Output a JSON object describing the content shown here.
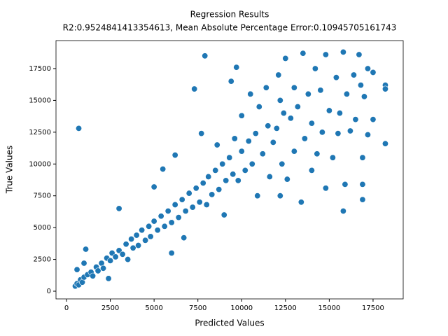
{
  "chart_data": {
    "type": "scatter",
    "title": "Regression Results",
    "subtitle": "R2:0.9524841413354613, Mean Absolute Percentage Error:0.10945705161743",
    "x_label": "Predicted Values",
    "y_label": "True Values",
    "color": "#1f77b4",
    "xlim": [
      -600,
      19220
    ],
    "ylim": [
      -605,
      19700
    ],
    "xticks": [
      0,
      2500,
      5000,
      7500,
      10000,
      12500,
      15000,
      17500
    ],
    "yticks": [
      0,
      2500,
      5000,
      7500,
      10000,
      12500,
      15000,
      17500
    ],
    "x": [
      500,
      600,
      700,
      800,
      900,
      1000,
      1100,
      1200,
      1400,
      1500,
      1700,
      1800,
      2000,
      2100,
      2300,
      2400,
      2500,
      2600,
      2800,
      3000,
      3000,
      3200,
      3400,
      3500,
      3700,
      3800,
      4000,
      4100,
      4300,
      4500,
      4700,
      4800,
      5000,
      5000,
      5200,
      5400,
      5500,
      5600,
      5800,
      6000,
      6000,
      6200,
      6200,
      6400,
      6600,
      6700,
      6800,
      7000,
      7200,
      7300,
      7400,
      7600,
      7700,
      7800,
      7900,
      8000,
      8100,
      8300,
      8500,
      8600,
      8700,
      8900,
      9000,
      9100,
      9300,
      9400,
      9500,
      9600,
      9700,
      9800,
      10000,
      10000,
      10200,
      10400,
      10500,
      10600,
      10800,
      10900,
      11000,
      11200,
      11400,
      11500,
      11600,
      11800,
      12000,
      12100,
      12200,
      12200,
      12300,
      12400,
      12500,
      12600,
      12800,
      13000,
      13000,
      13200,
      13400,
      13500,
      13600,
      13800,
      14000,
      14000,
      14200,
      14300,
      14500,
      14600,
      14800,
      14800,
      15000,
      15200,
      15400,
      15500,
      15600,
      15800,
      15800,
      15900,
      16000,
      16200,
      16400,
      16500,
      16700,
      16800,
      16900,
      16900,
      16900,
      17000,
      17200,
      17200,
      17500,
      17500,
      18200,
      18200,
      18200,
      700,
      600,
      1000
    ],
    "y": [
      400,
      600,
      500,
      900,
      700,
      1100,
      3300,
      1300,
      1500,
      1200,
      1900,
      1600,
      2200,
      1800,
      2600,
      1000,
      2400,
      3000,
      2700,
      3200,
      6500,
      2900,
      3700,
      2500,
      4100,
      3400,
      4400,
      3600,
      4800,
      4000,
      5100,
      4300,
      5500,
      8200,
      4800,
      5900,
      9600,
      5100,
      6300,
      5400,
      3000,
      6800,
      10700,
      5800,
      7200,
      4200,
      6300,
      7700,
      6600,
      15900,
      8100,
      7000,
      12400,
      8500,
      18500,
      6800,
      9000,
      7600,
      9500,
      11500,
      8000,
      10000,
      6000,
      8700,
      10500,
      16500,
      9200,
      12000,
      17600,
      8700,
      11000,
      13800,
      9500,
      11800,
      15500,
      10000,
      12400,
      7500,
      14500,
      10800,
      16000,
      13000,
      9000,
      11700,
      12800,
      17000,
      15000,
      7500,
      10000,
      14000,
      18300,
      8800,
      13600,
      16000,
      11000,
      14500,
      7000,
      18700,
      12000,
      15500,
      9500,
      13200,
      17500,
      10800,
      15800,
      12500,
      8100,
      18600,
      14200,
      10500,
      16800,
      12400,
      14000,
      6300,
      18800,
      8400,
      15500,
      12600,
      17000,
      13500,
      18600,
      16200,
      7200,
      10500,
      8400,
      15300,
      12300,
      17500,
      13500,
      17200,
      16200,
      15900,
      11600,
      12800,
      1700,
      2200
    ]
  }
}
